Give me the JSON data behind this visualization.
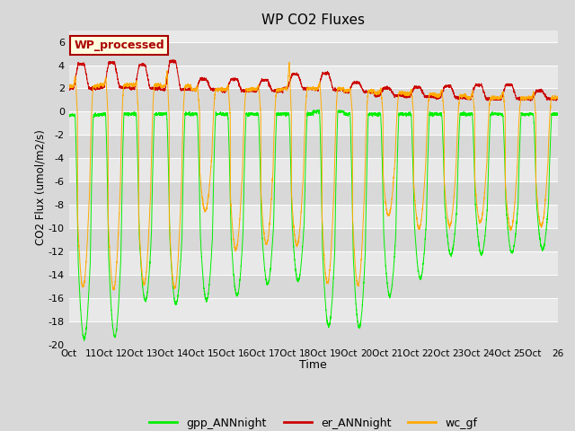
{
  "title": "WP CO2 Fluxes",
  "xlabel": "Time",
  "ylabel": "CO2 Flux (umol/m2/s)",
  "ylim": [
    -20,
    7
  ],
  "yticks": [
    -20,
    -18,
    -16,
    -14,
    -12,
    -10,
    -8,
    -6,
    -4,
    -2,
    0,
    2,
    4,
    6
  ],
  "fig_bg": "#d8d8d8",
  "plot_bg": "#f0f0f0",
  "band_colors": [
    "#e8e8e8",
    "#d8d8d8"
  ],
  "legend_labels": [
    "gpp_ANNnight",
    "er_ANNnight",
    "wc_gf"
  ],
  "line_colors": [
    "#00ee00",
    "#cc0000",
    "#ffaa00"
  ],
  "text_annotation": "WP_processed",
  "text_box_face": "#ffffe0",
  "text_box_edge": "#aa0000",
  "n_days": 16,
  "points_per_day": 288,
  "day_labels": [
    "Oct",
    "11Oct",
    "12Oct",
    "13Oct",
    "14Oct",
    "15Oct",
    "16Oct",
    "17Oct",
    "18Oct",
    "19Oct",
    "20Oct",
    "21Oct",
    "22Oct",
    "23Oct",
    "24Oct",
    "25Oct",
    "26"
  ],
  "gpp_day_min": [
    -19.5,
    -19.3,
    -16.2,
    -16.5,
    -16.2,
    -15.8,
    -14.8,
    -14.5,
    -18.4,
    -18.5,
    -15.8,
    -14.3,
    -12.3,
    -12.2,
    -12.1,
    -11.8
  ],
  "gpp_night_val": [
    -0.3,
    -0.2,
    -0.2,
    -0.2,
    -0.2,
    -0.2,
    -0.2,
    -0.2,
    0.0,
    -0.2,
    -0.2,
    -0.2,
    -0.2,
    -0.2,
    -0.2,
    -0.2
  ],
  "er_day_max": [
    4.1,
    4.2,
    4.0,
    4.3,
    2.8,
    2.8,
    2.7,
    3.2,
    3.3,
    2.5,
    2.0,
    2.1,
    2.2,
    2.3,
    2.3,
    1.8
  ],
  "er_night_val": [
    2.0,
    2.1,
    2.0,
    1.9,
    1.9,
    1.8,
    1.8,
    2.0,
    1.9,
    1.7,
    1.4,
    1.3,
    1.2,
    1.1,
    1.1,
    1.1
  ],
  "wc_day_min": [
    -15.0,
    -15.2,
    -14.8,
    -15.2,
    -8.5,
    -11.8,
    -11.4,
    -11.5,
    -14.7,
    -14.9,
    -8.9,
    -10.0,
    -9.8,
    -9.5,
    -10.1,
    -9.8
  ],
  "wc_night_val": [
    2.2,
    2.3,
    2.3,
    2.2,
    1.9,
    1.9,
    1.9,
    2.0,
    2.0,
    1.8,
    1.6,
    1.5,
    1.4,
    1.2,
    1.2,
    1.2
  ],
  "wc_peak": [
    3.1,
    3.0,
    2.5,
    3.5,
    2.2,
    2.2,
    2.3,
    4.3,
    2.5,
    2.0,
    2.0,
    1.9,
    1.9,
    1.8,
    1.8,
    1.7
  ]
}
